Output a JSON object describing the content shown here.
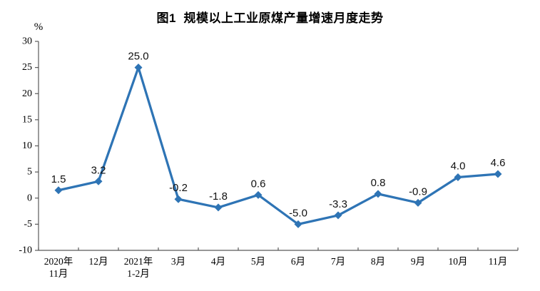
{
  "title": "图1  规模以上工业原煤产量增速月度走势",
  "chart_data": {
    "type": "line",
    "title": "图1 规模以上工业原煤产量增速月度走势",
    "unit_label": "%",
    "categories": [
      [
        "2020年",
        "11月"
      ],
      [
        "12月"
      ],
      [
        "2021年",
        "1-2月"
      ],
      [
        "3月"
      ],
      [
        "4月"
      ],
      [
        "5月"
      ],
      [
        "6月"
      ],
      [
        "7月"
      ],
      [
        "8月"
      ],
      [
        "9月"
      ],
      [
        "10月"
      ],
      [
        "11月"
      ]
    ],
    "values": [
      1.5,
      3.2,
      25.0,
      -0.2,
      -1.8,
      0.6,
      -5.0,
      -3.3,
      0.8,
      -0.9,
      4.0,
      4.6
    ],
    "point_labels": [
      "1.5",
      "3.2",
      "25.0",
      "-0.2",
      "-1.8",
      "0.6",
      "-5.0",
      "-3.3",
      "0.8",
      "-0.9",
      "4.0",
      "4.6"
    ],
    "yticks": [
      30,
      25,
      20,
      15,
      10,
      5,
      0,
      -5,
      -10
    ],
    "ylim": [
      -10,
      30
    ],
    "xlabel": "",
    "ylabel": "%",
    "grid": false,
    "legend": "none",
    "line_color": "#2E74B5",
    "marker": "diamond",
    "axis_color": "#595959",
    "text_color": "#000000"
  }
}
